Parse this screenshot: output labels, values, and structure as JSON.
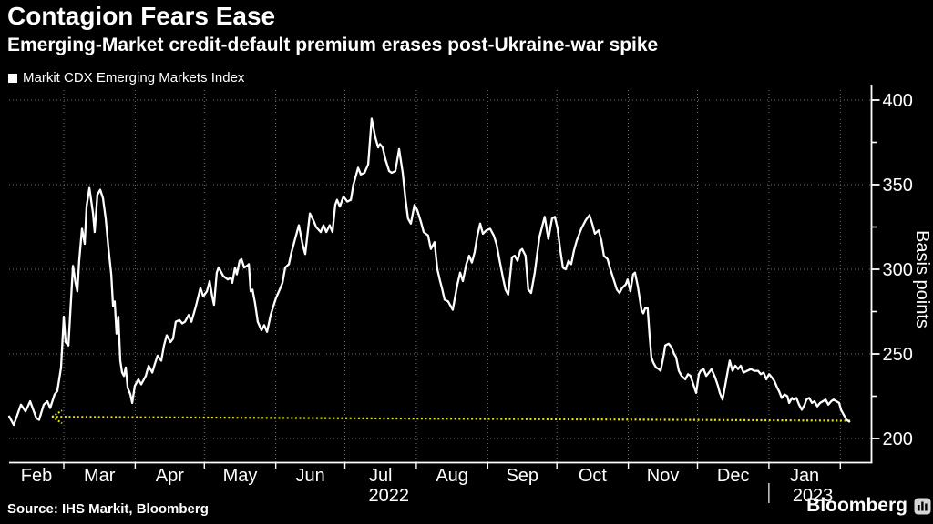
{
  "header": {
    "title": "Contagion Fears Ease",
    "subtitle": "Emerging-Market credit-default premium erases post-Ukraine-war spike"
  },
  "legend": {
    "label": "Markit CDX Emerging Markets Index",
    "marker_color": "#ffffff"
  },
  "footer": {
    "source": "Source: IHS Markit, Bloomberg",
    "brand": "Bloomberg"
  },
  "colors": {
    "background": "#000000",
    "line": "#ffffff",
    "grid": "#757575",
    "axis": "#ffffff",
    "annotation": "#e8e800",
    "text": "#ffffff"
  },
  "chart_data": {
    "type": "line",
    "title": "Contagion Fears Ease",
    "subtitle": "Emerging-Market credit-default premium erases post-Ukraine-war spike",
    "ylabel": "Basis points",
    "yticks": [
      200,
      250,
      300,
      350,
      400
    ],
    "yticks_minor": [
      225,
      275,
      325,
      375
    ],
    "ylim": [
      186,
      408
    ],
    "grid": "dotted",
    "legend_position": "top-left",
    "x_unit": "days since 2022-02-01 (approximate daily observations, Feb 2022 - early Feb 2023)",
    "x_month_labels": [
      "Feb",
      "Mar",
      "Apr",
      "May",
      "Jun",
      "Jul",
      "Aug",
      "Sep",
      "Oct",
      "Nov",
      "Dec",
      "Jan"
    ],
    "x_year_labels": [
      {
        "label": "2022",
        "under_month": "Jul"
      },
      {
        "label": "2023",
        "under_month": "Jan"
      }
    ],
    "annotation": {
      "type": "reference-dotted-line",
      "description": "Dotted yellow line with left arrow marking the pre-spike level (~211 bp) that the index has returned to",
      "from_day": 22.9,
      "from_value": 212.8,
      "to_day": 369.3,
      "to_value": 210.5,
      "arrow": "left"
    },
    "series": [
      {
        "name": "Markit CDX Emerging Markets Index",
        "color": "#ffffff",
        "points": [
          [
            4.3,
            213
          ],
          [
            6.3,
            208
          ],
          [
            9.4,
            220
          ],
          [
            11.4,
            216
          ],
          [
            13.4,
            222
          ],
          [
            16.1,
            212
          ],
          [
            17.3,
            211
          ],
          [
            19.3,
            220
          ],
          [
            20.9,
            222
          ],
          [
            22.1,
            218
          ],
          [
            24,
            226
          ],
          [
            25.2,
            228
          ],
          [
            26.8,
            242
          ],
          [
            28,
            272
          ],
          [
            28.8,
            257
          ],
          [
            30,
            255
          ],
          [
            30.8,
            274
          ],
          [
            32,
            302
          ],
          [
            33.1,
            292
          ],
          [
            33.9,
            287
          ],
          [
            34.7,
            305
          ],
          [
            35.9,
            324
          ],
          [
            37.1,
            315
          ],
          [
            37.9,
            337
          ],
          [
            39.1,
            348
          ],
          [
            40.7,
            333
          ],
          [
            41.4,
            322
          ],
          [
            42.6,
            344
          ],
          [
            43.8,
            347
          ],
          [
            45,
            342
          ],
          [
            46.2,
            330
          ],
          [
            47.4,
            312
          ],
          [
            48.6,
            297
          ],
          [
            49.4,
            278
          ],
          [
            50.1,
            281
          ],
          [
            50.9,
            262
          ],
          [
            51.7,
            272
          ],
          [
            52.5,
            246
          ],
          [
            53.3,
            239
          ],
          [
            54.1,
            237
          ],
          [
            54.9,
            242
          ],
          [
            55.7,
            230
          ],
          [
            56.9,
            226
          ],
          [
            57.7,
            221
          ],
          [
            58.8,
            231
          ],
          [
            60.4,
            235
          ],
          [
            61.6,
            232
          ],
          [
            63.6,
            237
          ],
          [
            64.8,
            243
          ],
          [
            66.4,
            239
          ],
          [
            67.5,
            244
          ],
          [
            68.7,
            249
          ],
          [
            70.3,
            246
          ],
          [
            71.5,
            255
          ],
          [
            72.7,
            261
          ],
          [
            74.3,
            257
          ],
          [
            75.4,
            259
          ],
          [
            76.6,
            269
          ],
          [
            78.2,
            270
          ],
          [
            79.4,
            268
          ],
          [
            80.6,
            269
          ],
          [
            82.2,
            273
          ],
          [
            83.4,
            269
          ],
          [
            85.3,
            278
          ],
          [
            87.3,
            289
          ],
          [
            88.5,
            284
          ],
          [
            90.1,
            287
          ],
          [
            91.3,
            293
          ],
          [
            92.4,
            284
          ],
          [
            93.2,
            279
          ],
          [
            94.4,
            298
          ],
          [
            95.2,
            301
          ],
          [
            96.4,
            298
          ],
          [
            97.2,
            296
          ],
          [
            99.2,
            294
          ],
          [
            100.4,
            295
          ],
          [
            101.1,
            292
          ],
          [
            102.3,
            301
          ],
          [
            103.1,
            297
          ],
          [
            104.3,
            305
          ],
          [
            105.1,
            306
          ],
          [
            106.3,
            301
          ],
          [
            107.5,
            302
          ],
          [
            108.3,
            303
          ],
          [
            109.1,
            287
          ],
          [
            109.9,
            288
          ],
          [
            111,
            280
          ],
          [
            112.2,
            269
          ],
          [
            113.8,
            264
          ],
          [
            115,
            267
          ],
          [
            116.2,
            263
          ],
          [
            117.8,
            273
          ],
          [
            118.9,
            278
          ],
          [
            120.1,
            283
          ],
          [
            121.7,
            288
          ],
          [
            122.9,
            292
          ],
          [
            124.1,
            301
          ],
          [
            125.7,
            303
          ],
          [
            126.8,
            310
          ],
          [
            128.4,
            318
          ],
          [
            130,
            326
          ],
          [
            131.6,
            315
          ],
          [
            132.8,
            309
          ],
          [
            134.8,
            333
          ],
          [
            136.3,
            329
          ],
          [
            137.5,
            325
          ],
          [
            139.5,
            322
          ],
          [
            140.7,
            326
          ],
          [
            141.9,
            322
          ],
          [
            143.4,
            326
          ],
          [
            144.6,
            322
          ],
          [
            145.8,
            338
          ],
          [
            146.6,
            341
          ],
          [
            147.8,
            337
          ],
          [
            149.4,
            343
          ],
          [
            151,
            340
          ],
          [
            152.6,
            341
          ],
          [
            153.7,
            350
          ],
          [
            155.7,
            360
          ],
          [
            156.9,
            356
          ],
          [
            158.5,
            357
          ],
          [
            160.1,
            362
          ],
          [
            161.6,
            389
          ],
          [
            163.2,
            378
          ],
          [
            164.4,
            372
          ],
          [
            165.2,
            374
          ],
          [
            166.4,
            372
          ],
          [
            167.6,
            365
          ],
          [
            169.2,
            358
          ],
          [
            170.3,
            357
          ],
          [
            171.9,
            358
          ],
          [
            173.5,
            371
          ],
          [
            175.1,
            357
          ],
          [
            176.3,
            341
          ],
          [
            177.4,
            330
          ],
          [
            178.6,
            327
          ],
          [
            180.2,
            338
          ],
          [
            181.4,
            335
          ],
          [
            183,
            328
          ],
          [
            184.2,
            322
          ],
          [
            186.1,
            320
          ],
          [
            187.3,
            312
          ],
          [
            188.9,
            316
          ],
          [
            190.1,
            300
          ],
          [
            191.3,
            293
          ],
          [
            192.1,
            289
          ],
          [
            193.3,
            282
          ],
          [
            194.8,
            281
          ],
          [
            196,
            278
          ],
          [
            196.8,
            276
          ],
          [
            198.8,
            291
          ],
          [
            200,
            298
          ],
          [
            201.2,
            293
          ],
          [
            202.7,
            303
          ],
          [
            203.9,
            308
          ],
          [
            205.1,
            304
          ],
          [
            206.3,
            310
          ],
          [
            207.5,
            320
          ],
          [
            208.7,
            327
          ],
          [
            209.9,
            321
          ],
          [
            211.4,
            323
          ],
          [
            213,
            324
          ],
          [
            214.6,
            320
          ],
          [
            215.8,
            315
          ],
          [
            217,
            306
          ],
          [
            218.6,
            295
          ],
          [
            219.7,
            288
          ],
          [
            220.9,
            285
          ],
          [
            222.5,
            307
          ],
          [
            223.7,
            308
          ],
          [
            224.9,
            305
          ],
          [
            226.1,
            311
          ],
          [
            226.9,
            312
          ],
          [
            228.4,
            308
          ],
          [
            229.6,
            288
          ],
          [
            230.8,
            286
          ],
          [
            232.4,
            298
          ],
          [
            234.4,
            319
          ],
          [
            236.7,
            331
          ],
          [
            238.3,
            318
          ],
          [
            239.9,
            330
          ],
          [
            241.1,
            331
          ],
          [
            242.3,
            324
          ],
          [
            243.5,
            311
          ],
          [
            244.6,
            301
          ],
          [
            245.8,
            300
          ],
          [
            247,
            305
          ],
          [
            248.2,
            303
          ],
          [
            249.4,
            311
          ],
          [
            250.6,
            317
          ],
          [
            252.6,
            324
          ],
          [
            254.5,
            329
          ],
          [
            256.1,
            332
          ],
          [
            257.3,
            327
          ],
          [
            258.5,
            321
          ],
          [
            260.1,
            323
          ],
          [
            261.3,
            317
          ],
          [
            262.4,
            308
          ],
          [
            264,
            306
          ],
          [
            265.2,
            300
          ],
          [
            266.4,
            295
          ],
          [
            268,
            288
          ],
          [
            269.2,
            286
          ],
          [
            270.3,
            289
          ],
          [
            271.9,
            291
          ],
          [
            272.7,
            294
          ],
          [
            273.9,
            287
          ],
          [
            275.1,
            297
          ],
          [
            275.9,
            298
          ],
          [
            277.1,
            290
          ],
          [
            277.9,
            283
          ],
          [
            278.7,
            276
          ],
          [
            279.5,
            274
          ],
          [
            280.3,
            277
          ],
          [
            281.4,
            277
          ],
          [
            282.2,
            261
          ],
          [
            283,
            248
          ],
          [
            283.8,
            245
          ],
          [
            285,
            242
          ],
          [
            286.2,
            241
          ],
          [
            287,
            240
          ],
          [
            288.2,
            248
          ],
          [
            289,
            255
          ],
          [
            290.5,
            256
          ],
          [
            291.7,
            254
          ],
          [
            292.9,
            250
          ],
          [
            293.7,
            248
          ],
          [
            294.9,
            240
          ],
          [
            296.1,
            237
          ],
          [
            297.7,
            235
          ],
          [
            298.9,
            238
          ],
          [
            300,
            237
          ],
          [
            301.2,
            232
          ],
          [
            302.4,
            227
          ],
          [
            303.6,
            238
          ],
          [
            304.4,
            240
          ],
          [
            305.6,
            241
          ],
          [
            306.8,
            237
          ],
          [
            308,
            239
          ],
          [
            309.1,
            241
          ],
          [
            310.7,
            236
          ],
          [
            311.9,
            231
          ],
          [
            312.7,
            227
          ],
          [
            313.9,
            223
          ],
          [
            315.1,
            232
          ],
          [
            316.3,
            241
          ],
          [
            317,
            246
          ],
          [
            318.2,
            240
          ],
          [
            319.4,
            243
          ],
          [
            320.6,
            241
          ],
          [
            321.8,
            243
          ],
          [
            323,
            239
          ],
          [
            324.6,
            240
          ],
          [
            326.2,
            241
          ],
          [
            327.7,
            240
          ],
          [
            329.3,
            240
          ],
          [
            330.5,
            238
          ],
          [
            331.7,
            239
          ],
          [
            332.9,
            235
          ],
          [
            334.1,
            238
          ],
          [
            335.3,
            236
          ],
          [
            336.4,
            234
          ],
          [
            337.6,
            230
          ],
          [
            338.4,
            228
          ],
          [
            339.6,
            224
          ],
          [
            340.8,
            226
          ],
          [
            342,
            225
          ],
          [
            342.8,
            221
          ],
          [
            344,
            224
          ],
          [
            344.7,
            223
          ],
          [
            345.9,
            224
          ],
          [
            347.1,
            220
          ],
          [
            348.3,
            217
          ],
          [
            349.5,
            220
          ],
          [
            350.3,
            223
          ],
          [
            351.5,
            224
          ],
          [
            352.7,
            221
          ],
          [
            353.8,
            222
          ],
          [
            355,
            219
          ],
          [
            356.2,
            221
          ],
          [
            357.4,
            222
          ],
          [
            358.6,
            223
          ],
          [
            359.8,
            220
          ],
          [
            361,
            222
          ],
          [
            362.1,
            223
          ],
          [
            363.3,
            222
          ],
          [
            364.5,
            221
          ],
          [
            365.3,
            217
          ],
          [
            366.5,
            214
          ],
          [
            367.7,
            211
          ],
          [
            368.9,
            210
          ]
        ]
      }
    ]
  },
  "axis_text": {
    "y_tick_labels": [
      "400",
      "350",
      "300",
      "250",
      "200"
    ],
    "y_axis_title": "Basis points"
  }
}
